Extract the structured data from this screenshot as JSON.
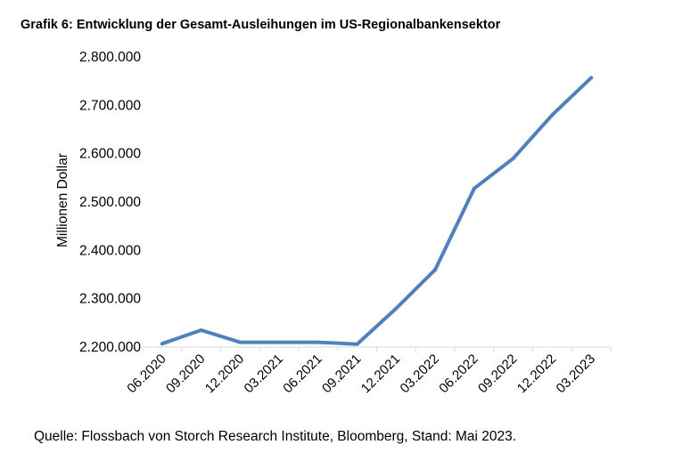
{
  "chart_data": {
    "type": "line",
    "title": "Grafik 6: Entwicklung der Gesamt-Ausleihungen im US-Regionalbankensektor",
    "xlabel": "",
    "ylabel": "Millionen Dollar",
    "categories": [
      "06.2020",
      "09.2020",
      "12.2020",
      "03.2021",
      "06.2021",
      "09.2021",
      "12.2021",
      "03.2022",
      "06.2022",
      "09.2022",
      "12.2022",
      "03.2023"
    ],
    "series": [
      {
        "values": [
          2207000,
          2235000,
          2210000,
          2210000,
          2210000,
          2206000,
          2280000,
          2360000,
          2528000,
          2590000,
          2680000,
          2757000
        ]
      }
    ],
    "ylim": [
      2200000,
      2800000
    ],
    "yticks": [
      2200000,
      2300000,
      2400000,
      2500000,
      2600000,
      2700000,
      2800000
    ],
    "ytick_labels": [
      "2.200.000",
      "2.300.000",
      "2.400.000",
      "2.500.000",
      "2.600.000",
      "2.700.000",
      "2.800.000"
    ],
    "grid": false,
    "legend": "none",
    "line_color": "#4F81BD",
    "source": "Quelle: Flossbach von Storch Research Institute, Bloomberg, Stand: Mai 2023."
  }
}
